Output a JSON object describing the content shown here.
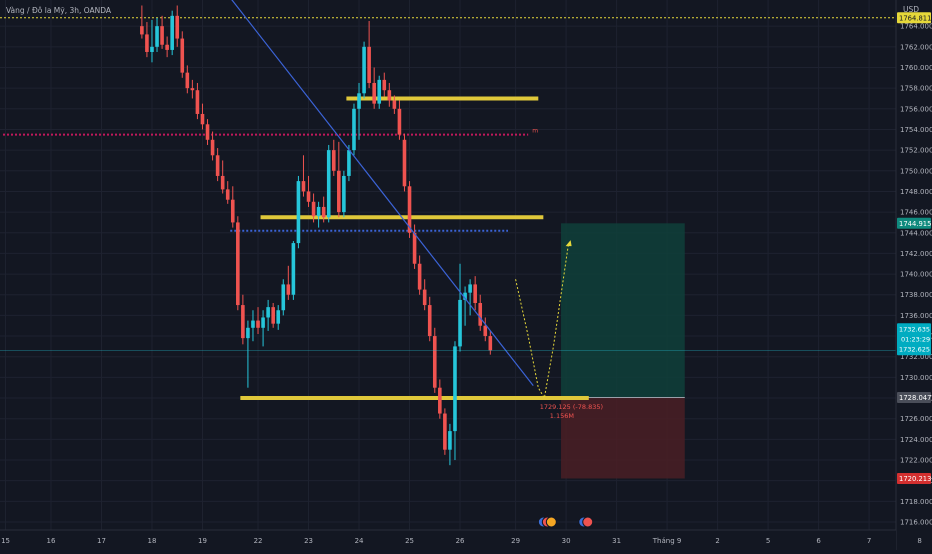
{
  "header": {
    "symbol_line": "Vàng / Đô la Mỹ, 3h, OANDA"
  },
  "price_scale": {
    "currency": "USD"
  },
  "colors": {
    "background": "#131722",
    "bull": "#26c6da",
    "bear": "#ef5350",
    "grid": "#1e2230",
    "level": "#e0c83a",
    "trendline": "#3b63d6",
    "high_line": "#e6d83a",
    "target_zone": "#0f3f3a",
    "stop_zone": "#4a1e24",
    "target_line": "#26a69a",
    "stop_line": "#ef5350"
  },
  "chart_data": {
    "type": "candlestick",
    "y_range": [
      1714.5,
      1766.0
    ],
    "y_ticks": [
      1716,
      1718,
      1720,
      1722,
      1724,
      1726,
      1728,
      1730,
      1732,
      1734,
      1736,
      1738,
      1740,
      1742,
      1744,
      1746,
      1748,
      1750,
      1752,
      1754,
      1756,
      1758,
      1760,
      1762,
      1764
    ],
    "y_tick_labels": [
      "1716.000",
      "1718.000",
      "1720.000",
      "1722.000",
      "1724.000",
      "1726.000",
      "1728.000",
      "1730.000",
      "1732.000",
      "1734.000",
      "1736.000",
      "1738.000",
      "1740.000",
      "1742.000",
      "1744.000",
      "1746.000",
      "1748.000",
      "1750.000",
      "1752.000",
      "1754.000",
      "1756.000",
      "1758.000",
      "1760.000",
      "1762.000",
      "1764.000"
    ],
    "x_ticks": [
      {
        "label": "15",
        "pos": 0.5
      },
      {
        "label": "16",
        "pos": 9.5
      },
      {
        "label": "17",
        "pos": 19.5
      },
      {
        "label": "18",
        "pos": 29.5
      },
      {
        "label": "19",
        "pos": 39.5
      },
      {
        "label": "22",
        "pos": 50.5
      },
      {
        "label": "23",
        "pos": 60.5
      },
      {
        "label": "24",
        "pos": 70.5
      },
      {
        "label": "25",
        "pos": 80.5
      },
      {
        "label": "26",
        "pos": 90.5
      },
      {
        "label": "29",
        "pos": 101.5
      },
      {
        "label": "30",
        "pos": 111.5
      },
      {
        "label": "31",
        "pos": 121.5
      },
      {
        "label": "Tháng 9",
        "pos": 131.5
      },
      {
        "label": "2",
        "pos": 141.5
      },
      {
        "label": "5",
        "pos": 151.5
      },
      {
        "label": "6",
        "pos": 161.5
      },
      {
        "label": "7",
        "pos": 171.5
      },
      {
        "label": "8",
        "pos": 181.5
      }
    ],
    "x_range": [
      0,
      182
    ],
    "candles_start_index": 27.5,
    "candles": [
      [
        1764.0,
        1766.0,
        1762.8,
        1763.2
      ],
      [
        1763.2,
        1764.4,
        1761.0,
        1761.5
      ],
      [
        1761.5,
        1764.6,
        1760.5,
        1762.0
      ],
      [
        1762.0,
        1764.8,
        1761.5,
        1764.0
      ],
      [
        1764.0,
        1765.0,
        1761.8,
        1762.2
      ],
      [
        1762.2,
        1763.0,
        1761.0,
        1761.7
      ],
      [
        1761.7,
        1765.5,
        1761.2,
        1765.0
      ],
      [
        1765.0,
        1766.0,
        1762.0,
        1762.8
      ],
      [
        1762.8,
        1763.5,
        1759.0,
        1759.5
      ],
      [
        1759.5,
        1760.2,
        1757.5,
        1758.0
      ],
      [
        1758.0,
        1758.8,
        1757.0,
        1757.8
      ],
      [
        1757.8,
        1758.5,
        1755.0,
        1755.5
      ],
      [
        1755.5,
        1756.5,
        1754.0,
        1754.5
      ],
      [
        1754.5,
        1755.0,
        1752.5,
        1753.0
      ],
      [
        1753.0,
        1753.8,
        1751.0,
        1751.5
      ],
      [
        1751.5,
        1752.2,
        1749.0,
        1749.5
      ],
      [
        1749.5,
        1751.0,
        1747.8,
        1748.2
      ],
      [
        1748.2,
        1749.0,
        1746.8,
        1747.2
      ],
      [
        1747.2,
        1748.5,
        1744.5,
        1745.0
      ],
      [
        1745.0,
        1745.6,
        1736.5,
        1737.0
      ],
      [
        1737.0,
        1738.0,
        1733.2,
        1733.8
      ],
      [
        1733.8,
        1735.5,
        1729.0,
        1734.8
      ],
      [
        1734.8,
        1736.5,
        1733.5,
        1735.5
      ],
      [
        1735.5,
        1736.8,
        1734.2,
        1734.8
      ],
      [
        1734.8,
        1736.5,
        1733.0,
        1735.8
      ],
      [
        1735.8,
        1737.5,
        1734.5,
        1736.8
      ],
      [
        1736.8,
        1737.2,
        1734.8,
        1735.2
      ],
      [
        1735.2,
        1737.0,
        1734.6,
        1736.5
      ],
      [
        1736.5,
        1739.5,
        1736.0,
        1739.0
      ],
      [
        1739.0,
        1740.8,
        1737.5,
        1738.0
      ],
      [
        1738.0,
        1743.2,
        1737.5,
        1743.0
      ],
      [
        1743.0,
        1749.5,
        1742.5,
        1749.0
      ],
      [
        1749.0,
        1751.5,
        1747.5,
        1748.0
      ],
      [
        1748.0,
        1749.5,
        1746.5,
        1747.0
      ],
      [
        1747.0,
        1747.8,
        1745.0,
        1745.6
      ],
      [
        1745.6,
        1747.0,
        1744.5,
        1746.5
      ],
      [
        1746.5,
        1747.5,
        1745.0,
        1745.5
      ],
      [
        1745.5,
        1752.5,
        1745.0,
        1752.0
      ],
      [
        1752.0,
        1753.0,
        1749.5,
        1750.0
      ],
      [
        1750.0,
        1752.8,
        1745.5,
        1746.0
      ],
      [
        1746.0,
        1750.0,
        1745.5,
        1749.5
      ],
      [
        1749.5,
        1752.5,
        1749.0,
        1752.0
      ],
      [
        1752.0,
        1756.5,
        1751.5,
        1756.0
      ],
      [
        1756.0,
        1758.5,
        1753.0,
        1757.5
      ],
      [
        1757.5,
        1762.5,
        1757.0,
        1762.0
      ],
      [
        1762.0,
        1764.5,
        1758.0,
        1758.5
      ],
      [
        1758.5,
        1760.0,
        1756.0,
        1756.5
      ],
      [
        1756.5,
        1759.2,
        1756.0,
        1758.8
      ],
      [
        1758.8,
        1759.5,
        1757.2,
        1757.8
      ],
      [
        1757.8,
        1758.5,
        1756.2,
        1756.8
      ],
      [
        1756.8,
        1757.3,
        1755.5,
        1756.0
      ],
      [
        1756.0,
        1756.8,
        1753.0,
        1753.5
      ],
      [
        1753.0,
        1753.6,
        1748.0,
        1748.5
      ],
      [
        1748.5,
        1749.0,
        1743.5,
        1744.0
      ],
      [
        1744.0,
        1744.8,
        1740.5,
        1741.0
      ],
      [
        1741.0,
        1741.8,
        1738.0,
        1738.5
      ],
      [
        1738.5,
        1739.5,
        1736.5,
        1737.0
      ],
      [
        1737.0,
        1737.8,
        1733.5,
        1734.0
      ],
      [
        1734.0,
        1734.8,
        1728.5,
        1729.0
      ],
      [
        1729.0,
        1729.8,
        1726.0,
        1726.5
      ],
      [
        1726.5,
        1727.0,
        1722.5,
        1723.0
      ],
      [
        1723.0,
        1725.5,
        1721.5,
        1724.8
      ],
      [
        1724.8,
        1733.5,
        1722.0,
        1733.0
      ],
      [
        1733.0,
        1741.0,
        1732.5,
        1737.5
      ],
      [
        1737.5,
        1738.8,
        1735.0,
        1738.2
      ],
      [
        1738.2,
        1739.5,
        1736.0,
        1739.0
      ],
      [
        1739.0,
        1739.8,
        1736.5,
        1737.2
      ],
      [
        1737.2,
        1738.0,
        1734.5,
        1735.0
      ],
      [
        1735.0,
        1735.8,
        1733.5,
        1734.0
      ],
      [
        1734.0,
        1734.5,
        1732.2,
        1732.6
      ]
    ],
    "levels": [
      {
        "price": 1757.0,
        "from": 68,
        "to": 106
      },
      {
        "price": 1745.5,
        "from": 51,
        "to": 107
      },
      {
        "price": 1728.0,
        "from": 47,
        "to": 116
      }
    ],
    "trendline": {
      "from": [
        43,
        1768
      ],
      "to": [
        105,
        1729.2
      ]
    },
    "high_line": {
      "price": 1764.811,
      "label": "1764.811"
    },
    "dashed_resistance": {
      "price": 1753.5,
      "from": 0,
      "to": 104,
      "tag": "m"
    },
    "dashed_support": {
      "price": 1744.2,
      "from": 45,
      "to": 100
    },
    "projection_path": [
      [
        101.5,
        1739.5
      ],
      [
        104,
        1734
      ],
      [
        106,
        1729
      ],
      [
        107.2,
        1728.0
      ],
      [
        109,
        1733
      ],
      [
        110.5,
        1738
      ],
      [
        112,
        1743
      ]
    ],
    "position": {
      "entry": 1728.047,
      "target": 1744.915,
      "stop": 1720.213,
      "from": 110.5,
      "to": 135,
      "entry_label": "1728.047",
      "target_label": "1744.915",
      "stop_label": "1720.213"
    },
    "current_price": {
      "price": 1732.625,
      "label_top": "1732.635",
      "label_mid": "01:23:29",
      "label_bottom": "1732.625"
    },
    "annotation": {
      "price_text": "1729.125 (-78.835)",
      "volume_text": "1.156M",
      "at": [
        105.5,
        1727.5
      ]
    },
    "event_icons": [
      {
        "pos": 107,
        "count": 3
      },
      {
        "pos": 115,
        "count": 2
      }
    ]
  }
}
